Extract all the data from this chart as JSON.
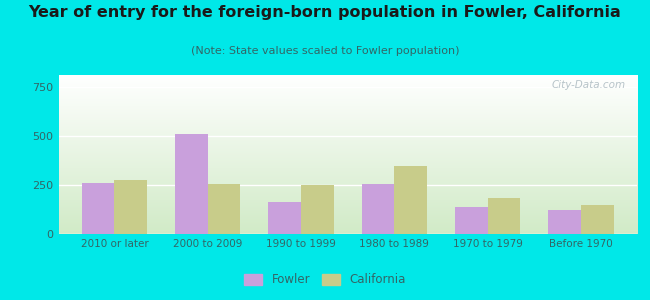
{
  "categories": [
    "2010 or later",
    "2000 to 2009",
    "1990 to 1999",
    "1980 to 1989",
    "1970 to 1979",
    "Before 1970"
  ],
  "fowler_values": [
    260,
    510,
    165,
    253,
    140,
    120
  ],
  "california_values": [
    275,
    255,
    250,
    345,
    185,
    150
  ],
  "fowler_color": "#c9a0dc",
  "california_color": "#c8cc8a",
  "title": "Year of entry for the foreign-born population in Fowler, California",
  "subtitle": "(Note: State values scaled to Fowler population)",
  "title_fontsize": 11.5,
  "subtitle_fontsize": 8,
  "ylabel_ticks": [
    0,
    250,
    500,
    750
  ],
  "ylim": [
    0,
    810
  ],
  "background_outer": "#00e8e8",
  "bar_width": 0.35,
  "watermark": "City-Data.com",
  "legend_fowler": "Fowler",
  "legend_california": "California"
}
